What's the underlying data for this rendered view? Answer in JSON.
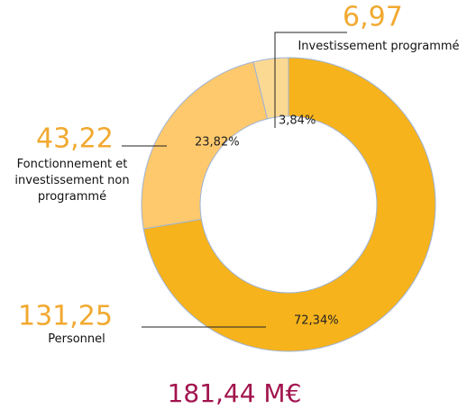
{
  "chart_data": {
    "type": "donut",
    "categories": [
      "Personnel",
      "Fonctionnement et investissement non programmé",
      "Investissement programmé"
    ],
    "values": [
      131.25,
      43.22,
      6.97
    ],
    "value_labels": [
      "131,25",
      "43,22",
      "6,97"
    ],
    "percentages": [
      72.34,
      23.82,
      3.84
    ],
    "percentage_labels": [
      "72,34%",
      "23,82%",
      "3,84%"
    ],
    "colors": [
      "#f6b31c",
      "#fec96c",
      "#fcd993"
    ],
    "total": 181.44,
    "total_label": "181,44 M€"
  }
}
